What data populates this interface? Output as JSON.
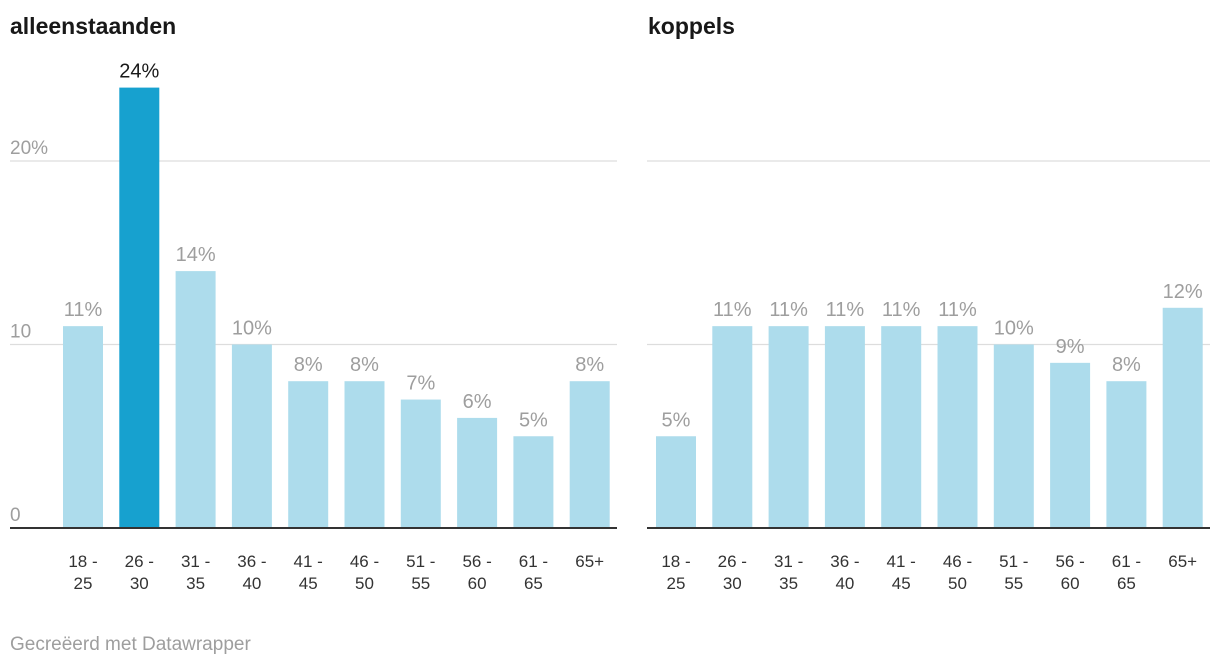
{
  "chart_data": [
    {
      "type": "bar",
      "title": "alleenstaanden",
      "categories": [
        "18 - 25",
        "26 - 30",
        "31 - 35",
        "36 - 40",
        "41 - 45",
        "46 - 50",
        "51 - 55",
        "56 - 60",
        "61 - 65",
        "65+"
      ],
      "values": [
        11,
        24,
        14,
        10,
        8,
        8,
        7,
        6,
        5,
        8
      ],
      "value_labels": [
        "11%",
        "24%",
        "14%",
        "10%",
        "8%",
        "8%",
        "7%",
        "6%",
        "5%",
        "8%"
      ],
      "highlight_index": 1,
      "ylim": [
        0,
        24
      ],
      "yticks": [
        0,
        10,
        20
      ],
      "ytick_labels": [
        "0",
        "10",
        "20%"
      ],
      "grid": true
    },
    {
      "type": "bar",
      "title": "koppels",
      "categories": [
        "18 - 25",
        "26 - 30",
        "31 - 35",
        "36 - 40",
        "41 - 45",
        "46 - 50",
        "51 - 55",
        "56 - 60",
        "61 - 65",
        "65+"
      ],
      "values": [
        5,
        11,
        11,
        11,
        11,
        11,
        10,
        9,
        8,
        12
      ],
      "value_labels": [
        "5%",
        "11%",
        "11%",
        "11%",
        "11%",
        "11%",
        "10%",
        "9%",
        "8%",
        "12%"
      ],
      "highlight_index": null,
      "ylim": [
        0,
        24
      ],
      "yticks": [
        0,
        10,
        20
      ],
      "ytick_labels": [
        "",
        "",
        ""
      ],
      "grid": true
    }
  ],
  "colors": {
    "bar": "#addcec",
    "bar_highlight": "#17a1cf",
    "value_label": "#9e9e9e",
    "value_label_highlight": "#181818"
  },
  "footer": {
    "credit": "Gecreëerd met Datawrapper"
  }
}
